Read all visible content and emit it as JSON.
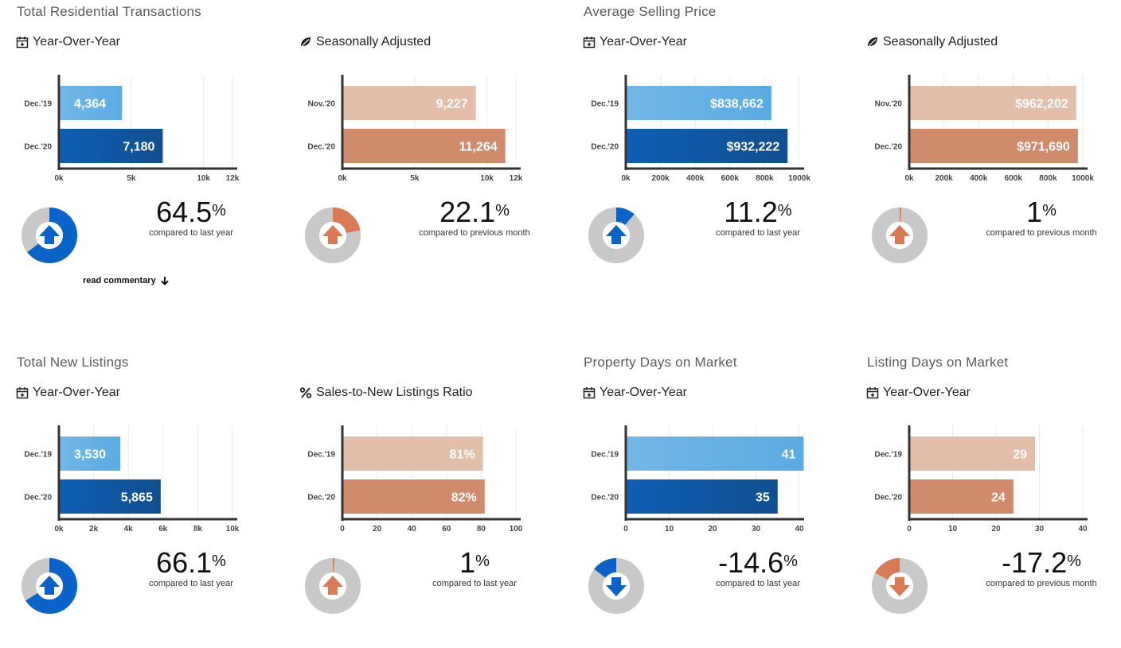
{
  "sections": [
    {
      "title": "Total Residential Transactions"
    },
    {
      "title": "Average Selling Price"
    },
    {
      "title": "Total New Listings"
    },
    {
      "title": "Property Days on Market"
    },
    {
      "title": "Listing Days on Market"
    }
  ],
  "commentary_label": "read commentary",
  "colors": {
    "blue_light": "#5aabe3",
    "blue_dark": "#0e5fb7",
    "blue_accent": "#0a63c9",
    "peach_light": "#e3bfa9",
    "peach_dark": "#d08a6c",
    "peach_accent": "#d77a55",
    "donut_bg": "#c9c9c9",
    "axis": "#333333"
  },
  "chart_data": [
    {
      "id": "p1",
      "subtitle": "Year-Over-Year",
      "icon": "calendar-icon",
      "type": "bar",
      "palette": "blue",
      "categories": [
        "Dec.'19",
        "Dec.'20"
      ],
      "values": [
        4364,
        7180
      ],
      "labels": [
        "4,364",
        "7,180"
      ],
      "xlim": [
        0,
        12000
      ],
      "xticks": [
        0,
        5000,
        10000,
        12000
      ],
      "xtick_labels": [
        "0k",
        "5k",
        "10k",
        "12k"
      ],
      "change": "64.5",
      "caption": "compared to last year",
      "direction": "up",
      "donut_fraction": 0.645
    },
    {
      "id": "p2",
      "subtitle": "Seasonally Adjusted",
      "icon": "leaf-icon",
      "type": "bar",
      "palette": "peach",
      "categories": [
        "Nov.'20",
        "Dec.'20"
      ],
      "values": [
        9227,
        11264
      ],
      "labels": [
        "9,227",
        "11,264"
      ],
      "xlim": [
        0,
        12000
      ],
      "xticks": [
        0,
        5000,
        10000,
        12000
      ],
      "xtick_labels": [
        "0k",
        "5k",
        "10k",
        "12k"
      ],
      "change": "22.1",
      "caption": "compared to previous month",
      "direction": "up",
      "donut_fraction": 0.221
    },
    {
      "id": "p3",
      "subtitle": "Year-Over-Year",
      "icon": "calendar-icon",
      "type": "bar",
      "palette": "blue",
      "categories": [
        "Dec.'19",
        "Dec.'20"
      ],
      "values": [
        838662,
        932222
      ],
      "labels": [
        "$838,662",
        "$932,222"
      ],
      "xlim": [
        0,
        1000000
      ],
      "xticks": [
        0,
        200000,
        400000,
        600000,
        800000,
        1000000
      ],
      "xtick_labels": [
        "0k",
        "200k",
        "400k",
        "600k",
        "800k",
        "1000k"
      ],
      "change": "11.2",
      "caption": "compared to last year",
      "direction": "up",
      "donut_fraction": 0.112
    },
    {
      "id": "p4",
      "subtitle": "Seasonally Adjusted",
      "icon": "leaf-icon",
      "type": "bar",
      "palette": "peach",
      "categories": [
        "Nov.'20",
        "Dec.'20"
      ],
      "values": [
        962202,
        971690
      ],
      "labels": [
        "$962,202",
        "$971,690"
      ],
      "xlim": [
        0,
        1000000
      ],
      "xticks": [
        0,
        200000,
        400000,
        600000,
        800000,
        1000000
      ],
      "xtick_labels": [
        "0k",
        "200k",
        "400k",
        "600k",
        "800k",
        "1000k"
      ],
      "change": "1",
      "caption": "compared to previous month",
      "direction": "up",
      "donut_fraction": 0.01
    },
    {
      "id": "p5",
      "subtitle": "Year-Over-Year",
      "icon": "calendar-icon",
      "type": "bar",
      "palette": "blue",
      "categories": [
        "Dec.'19",
        "Dec.'20"
      ],
      "values": [
        3530,
        5865
      ],
      "labels": [
        "3,530",
        "5,865"
      ],
      "xlim": [
        0,
        10000
      ],
      "xticks": [
        0,
        2000,
        4000,
        6000,
        8000,
        10000
      ],
      "xtick_labels": [
        "0k",
        "2k",
        "4k",
        "6k",
        "8k",
        "10k"
      ],
      "change": "66.1",
      "caption": "compared to last year",
      "direction": "up",
      "donut_fraction": 0.661
    },
    {
      "id": "p6",
      "subtitle": "Sales-to-New Listings Ratio",
      "icon": "percent-icon",
      "type": "bar",
      "palette": "peach",
      "categories": [
        "Dec.'19",
        "Dec.'20"
      ],
      "values": [
        81,
        82
      ],
      "labels": [
        "81%",
        "82%"
      ],
      "xlim": [
        0,
        100
      ],
      "xticks": [
        0,
        20,
        40,
        60,
        80,
        100
      ],
      "xtick_labels": [
        "0",
        "20",
        "40",
        "60",
        "80",
        "100"
      ],
      "change": "1",
      "caption": "compared to last year",
      "direction": "up",
      "donut_fraction": 0.01
    },
    {
      "id": "p7",
      "subtitle": "Year-Over-Year",
      "icon": "calendar-icon",
      "type": "bar",
      "palette": "blue",
      "categories": [
        "Dec.'19",
        "Dec.'20"
      ],
      "values": [
        41,
        35
      ],
      "labels": [
        "41",
        "35"
      ],
      "xlim": [
        0,
        40
      ],
      "xticks": [
        0,
        10,
        20,
        30,
        40
      ],
      "xtick_labels": [
        "0",
        "10",
        "20",
        "30",
        "40"
      ],
      "change": "-14.6",
      "caption": "compared to last year",
      "direction": "down",
      "donut_fraction": 0.146
    },
    {
      "id": "p8",
      "subtitle": "Year-Over-Year",
      "icon": "calendar-icon",
      "type": "bar",
      "palette": "peach",
      "categories": [
        "Dec.'19",
        "Dec.'20"
      ],
      "values": [
        29,
        24
      ],
      "labels": [
        "29",
        "24"
      ],
      "xlim": [
        0,
        40
      ],
      "xticks": [
        0,
        10,
        20,
        30,
        40
      ],
      "xtick_labels": [
        "0",
        "10",
        "20",
        "30",
        "40"
      ],
      "change": "-17.2",
      "caption": "compared to previous month",
      "direction": "down",
      "donut_fraction": 0.172
    }
  ]
}
